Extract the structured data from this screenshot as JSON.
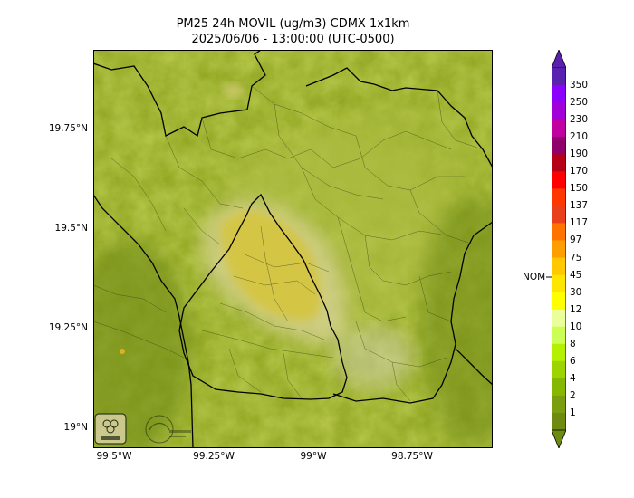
{
  "title": {
    "line1": "PM25 24h MOVIL (ug/m3) CDMX 1x1km",
    "line2": "2025/06/06 - 13:00:00 (UTC-0500)"
  },
  "map": {
    "lat_ticks": [
      "19.75°N",
      "19.5°N",
      "19.25°N",
      "19°N"
    ],
    "lon_ticks": [
      "99.5°W",
      "99.25°W",
      "99°W",
      "98.75°W"
    ],
    "terrain_colors": {
      "low": "#8a9e1c",
      "mid": "#a8b830",
      "plume": "#d9c640",
      "plume_light": "#d8cf98"
    },
    "logos": {
      "left": "sedema-logo",
      "right": "ciudad-de-mexico-logo"
    }
  },
  "colorbar": {
    "labels": [
      "350",
      "250",
      "230",
      "210",
      "190",
      "170",
      "150",
      "137",
      "117",
      "97",
      "75",
      "45",
      "30",
      "12",
      "10",
      "8",
      "6",
      "4",
      "2",
      "1"
    ],
    "colors": [
      "#5a21b0",
      "#8b00ff",
      "#a100d8",
      "#c000a0",
      "#90006a",
      "#b5001a",
      "#ff0000",
      "#ff3800",
      "#e8401a",
      "#ff7400",
      "#ff9e00",
      "#ffc800",
      "#ffe600",
      "#ffff00",
      "#eaff9a",
      "#ccff55",
      "#b4f000",
      "#9cd400",
      "#86b800",
      "#7a9e10",
      "#6e8a10"
    ],
    "nom_label": "NOM"
  }
}
